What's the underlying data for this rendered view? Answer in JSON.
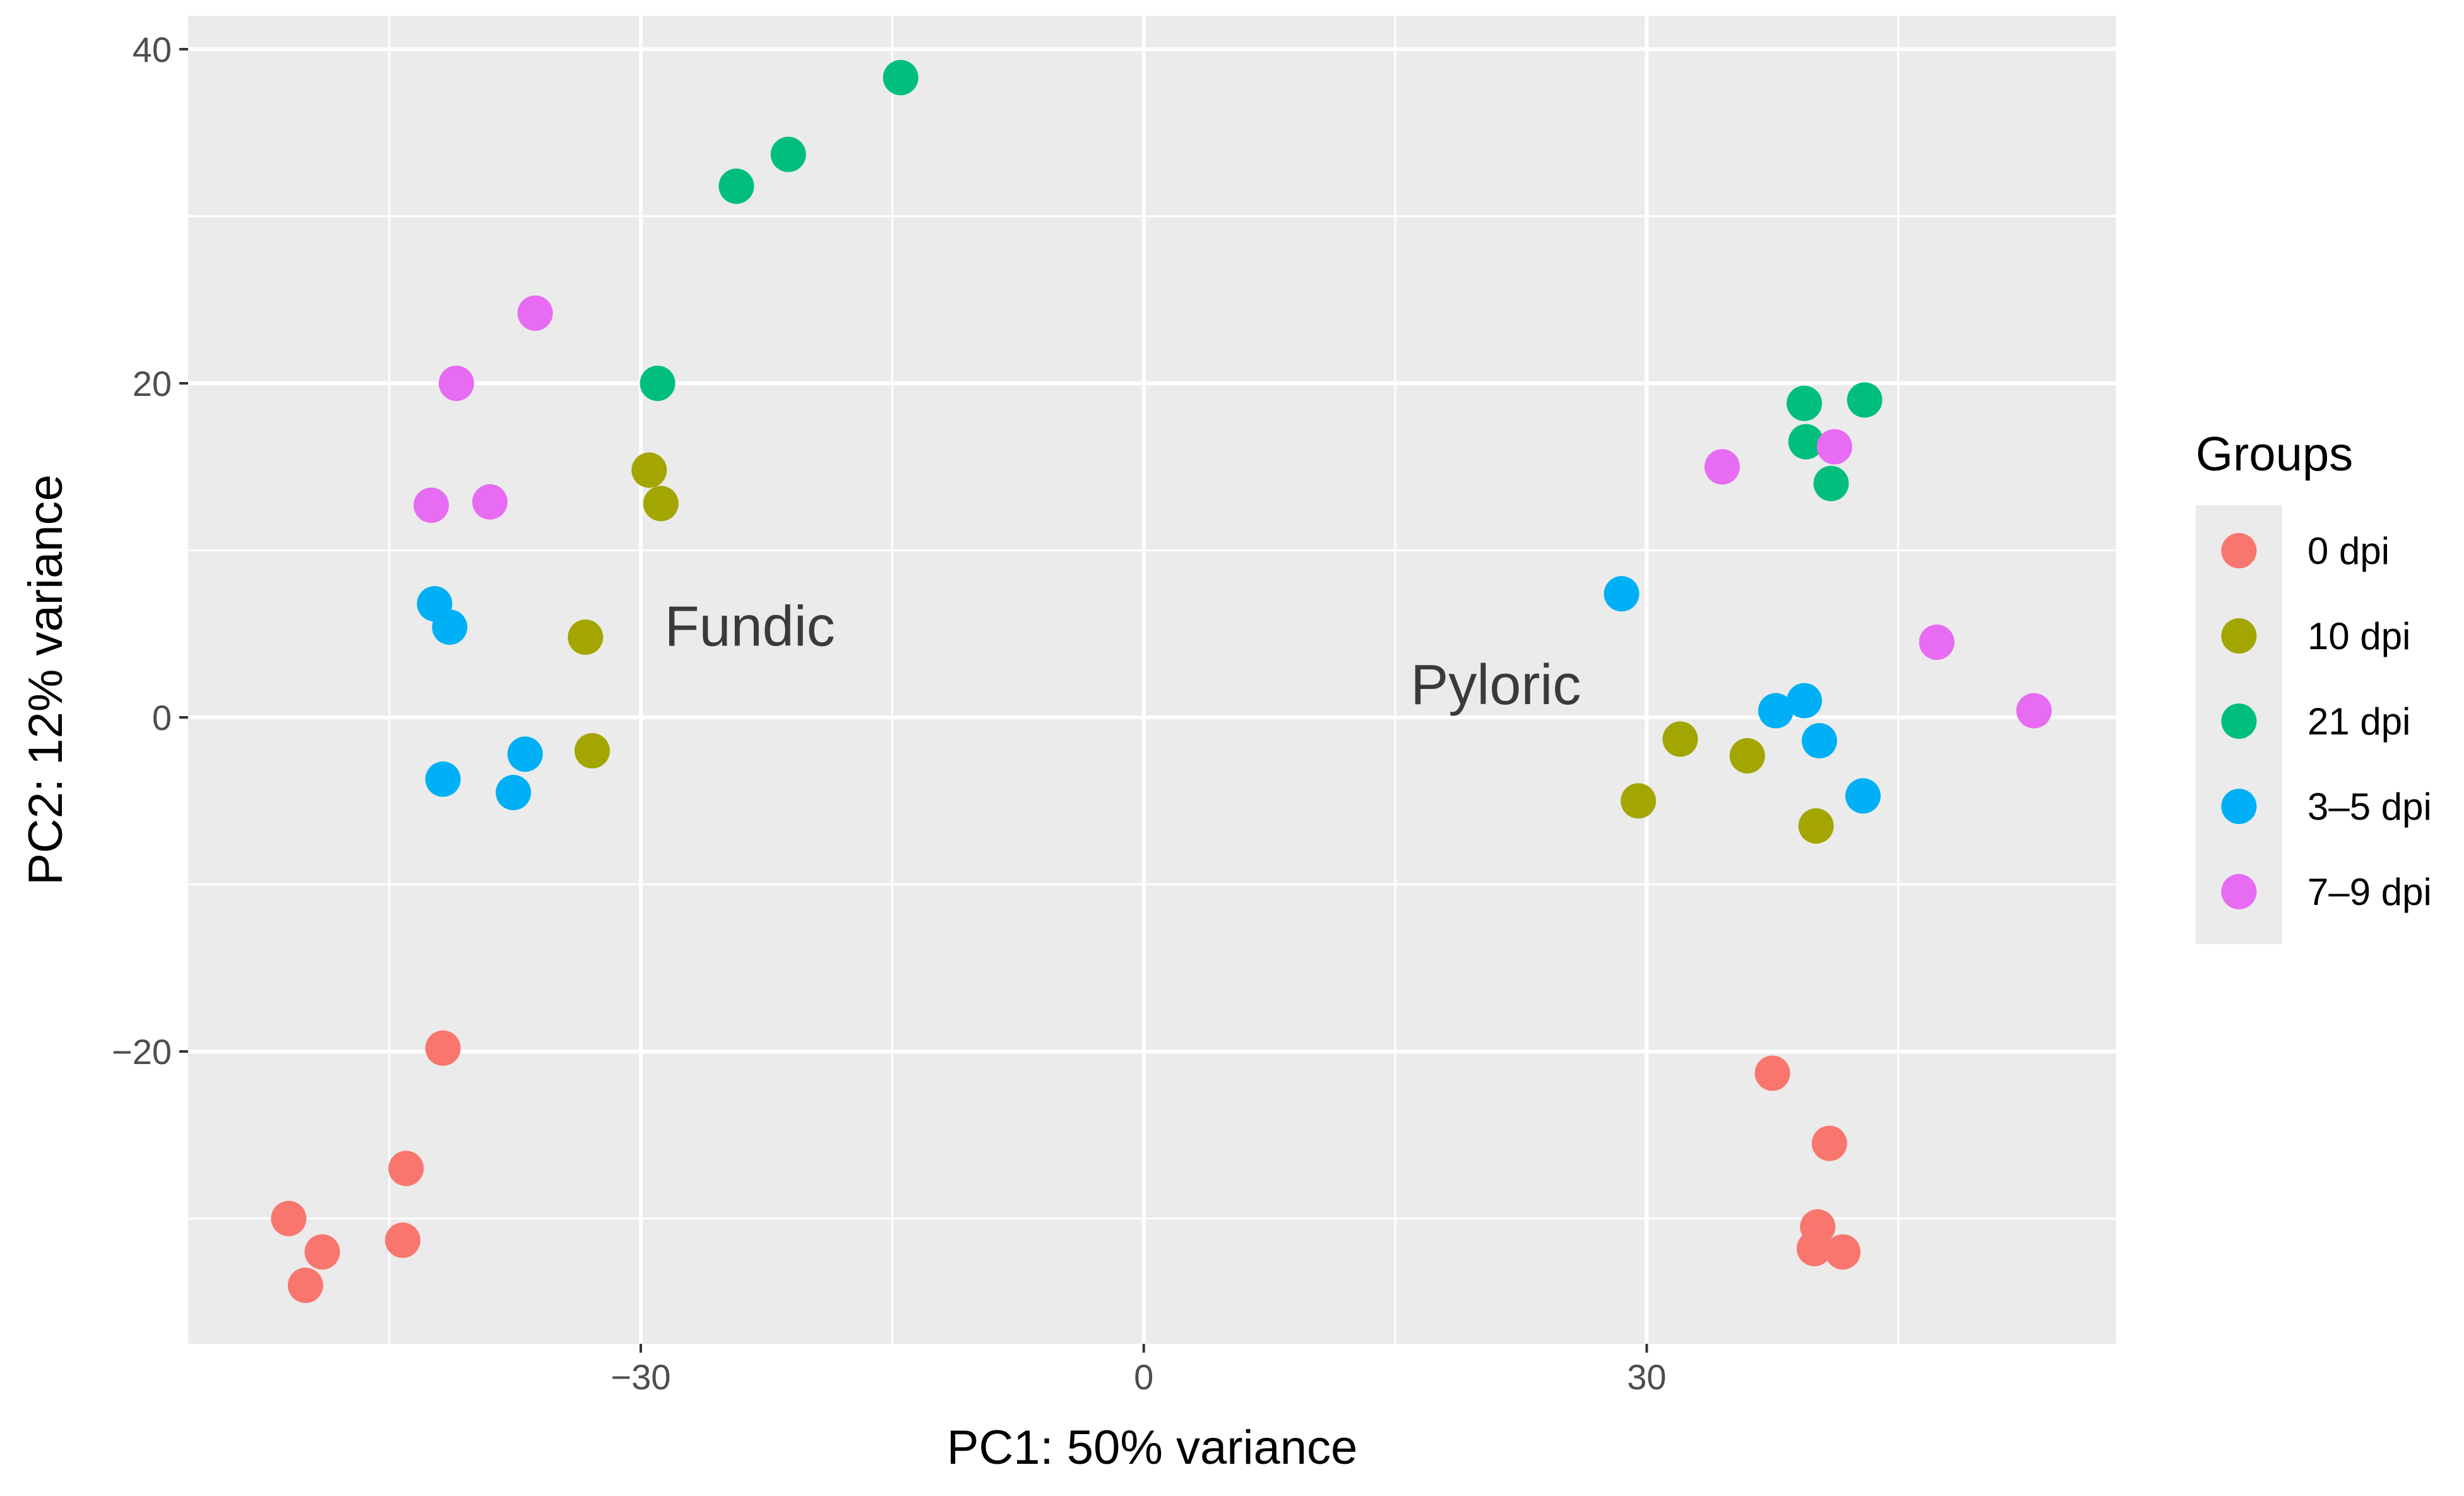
{
  "chart_data": {
    "type": "scatter",
    "title": "",
    "xlabel": "PC1: 50% variance",
    "ylabel": "PC2: 12% variance",
    "xlim": [
      -57,
      58
    ],
    "ylim": [
      -37.5,
      42
    ],
    "x_ticks": [
      -30,
      0,
      30
    ],
    "x_tick_labels": [
      "−30",
      "0",
      "30"
    ],
    "y_ticks": [
      -20,
      0,
      20,
      40
    ],
    "y_tick_labels": [
      "−20",
      "0",
      "20",
      "40"
    ],
    "grid": true,
    "legend": {
      "title": "Groups",
      "position": "right"
    },
    "annotations": [
      {
        "text": "Fundic",
        "x": -23.5,
        "y": 5.5
      },
      {
        "text": "Pyloric",
        "x": 21,
        "y": 2
      }
    ],
    "series": [
      {
        "name": "0 dpi",
        "color": "#F8766D",
        "points": [
          {
            "x": -41.8,
            "y": -19.8
          },
          {
            "x": -44.0,
            "y": -27.0
          },
          {
            "x": -44.2,
            "y": -31.3
          },
          {
            "x": -51.0,
            "y": -30.0
          },
          {
            "x": -49.0,
            "y": -32.0
          },
          {
            "x": -50.0,
            "y": -34.0
          },
          {
            "x": 37.5,
            "y": -21.3
          },
          {
            "x": 40.9,
            "y": -25.5
          },
          {
            "x": 40.2,
            "y": -30.5
          },
          {
            "x": 40.0,
            "y": -31.8
          },
          {
            "x": 41.7,
            "y": -32.0
          }
        ]
      },
      {
        "name": "10 dpi",
        "color": "#A3A500",
        "points": [
          {
            "x": -29.5,
            "y": 14.8
          },
          {
            "x": -28.8,
            "y": 12.8
          },
          {
            "x": -33.3,
            "y": 4.8
          },
          {
            "x": -32.9,
            "y": -2.0
          },
          {
            "x": 32.0,
            "y": -1.3
          },
          {
            "x": 36.0,
            "y": -2.3
          },
          {
            "x": 29.5,
            "y": -5.0
          },
          {
            "x": 40.1,
            "y": -6.5
          }
        ]
      },
      {
        "name": "21 dpi",
        "color": "#00BF7D",
        "points": [
          {
            "x": -14.5,
            "y": 38.3
          },
          {
            "x": -21.2,
            "y": 33.7
          },
          {
            "x": -24.3,
            "y": 31.8
          },
          {
            "x": -29.0,
            "y": 20.0
          },
          {
            "x": 39.4,
            "y": 18.8
          },
          {
            "x": 43.0,
            "y": 19.0
          },
          {
            "x": 39.5,
            "y": 16.5
          },
          {
            "x": 41.0,
            "y": 14.0
          }
        ]
      },
      {
        "name": "3–5 dpi",
        "color": "#00B0F6",
        "points": [
          {
            "x": -42.3,
            "y": 6.8
          },
          {
            "x": -41.4,
            "y": 5.4
          },
          {
            "x": -41.8,
            "y": -3.7
          },
          {
            "x": -36.9,
            "y": -2.2
          },
          {
            "x": -37.6,
            "y": -4.5
          },
          {
            "x": 28.5,
            "y": 7.4
          },
          {
            "x": 37.7,
            "y": 0.4
          },
          {
            "x": 39.4,
            "y": 1.0
          },
          {
            "x": 40.3,
            "y": -1.4
          },
          {
            "x": 42.9,
            "y": -4.7
          }
        ]
      },
      {
        "name": "7–9 dpi",
        "color": "#E76BF3",
        "points": [
          {
            "x": -36.3,
            "y": 24.2
          },
          {
            "x": -41.0,
            "y": 20.0
          },
          {
            "x": -39.0,
            "y": 12.9
          },
          {
            "x": -42.5,
            "y": 12.7
          },
          {
            "x": 34.5,
            "y": 15.0
          },
          {
            "x": 41.2,
            "y": 16.2
          },
          {
            "x": 47.3,
            "y": 4.5
          },
          {
            "x": 53.1,
            "y": 0.4
          }
        ]
      }
    ]
  }
}
